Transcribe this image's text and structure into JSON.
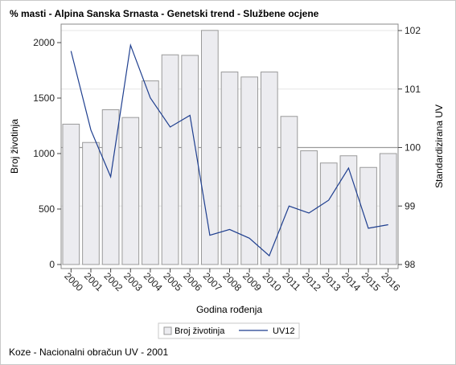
{
  "title": "% masti - Alpina Sanska Srnasta - Genetski trend - Službene ocjene",
  "footnote": "Koze - Nacionalni obračun UV - 2001",
  "colors": {
    "bar_fill": "#ececf0",
    "bar_stroke": "#9a9a9a",
    "line": "#1f3f8f",
    "reference_line": "#9a9a9a",
    "grid": "#e6e6e6"
  },
  "chart_data": {
    "type": "bar",
    "categories": [
      "2000",
      "2001",
      "2002",
      "2003",
      "2004",
      "2005",
      "2006",
      "2007",
      "2008",
      "2009",
      "2010",
      "2011",
      "2012",
      "2013",
      "2014",
      "2015",
      "2016"
    ],
    "xlabel": "Godina rođenja",
    "ylabel": "Broj životinja",
    "y2label": "Standardizirana UV",
    "ylim": [
      0,
      2150
    ],
    "y2lim": [
      98,
      102
    ],
    "yticks": [
      "0",
      "500",
      "1000",
      "1500",
      "2000"
    ],
    "y2ticks": [
      "98",
      "99",
      "100",
      "101",
      "102"
    ],
    "reference_line_y2": 100,
    "grid": true,
    "legend_position": "bottom",
    "series": [
      {
        "name": "Broj životinja",
        "type": "bar",
        "axis": "left",
        "values": [
          1265,
          1100,
          1395,
          1325,
          1655,
          1890,
          1885,
          2110,
          1735,
          1690,
          1735,
          1335,
          1025,
          915,
          980,
          875,
          1000
        ]
      },
      {
        "name": "UV12",
        "type": "line",
        "axis": "right",
        "values": [
          101.65,
          100.3,
          99.5,
          101.75,
          100.85,
          100.35,
          100.55,
          98.5,
          98.6,
          98.45,
          98.15,
          99.0,
          98.88,
          99.1,
          99.65,
          98.62,
          98.68
        ]
      }
    ]
  }
}
